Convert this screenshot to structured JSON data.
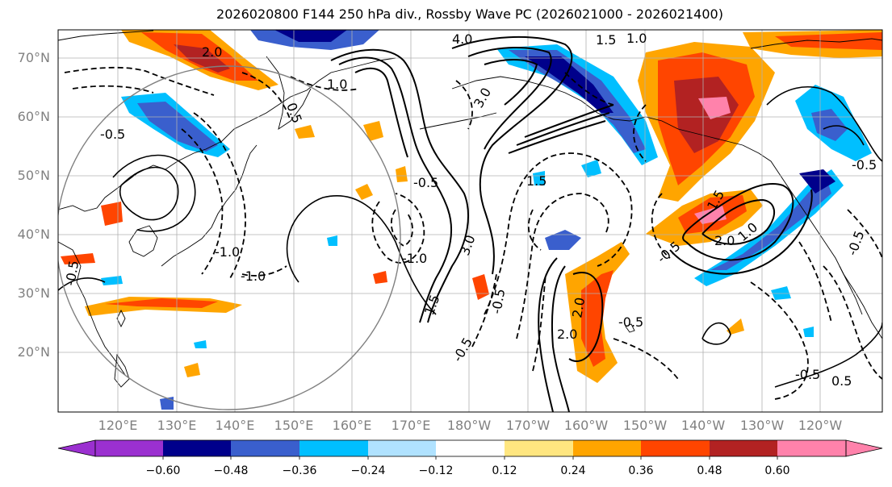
{
  "title": "2026020800 F144 250 hPa div., Rossby Wave PC (2026021000 - 2026021400)",
  "lat_labels": [
    "70°N",
    "60°N",
    "50°N",
    "40°N",
    "30°N",
    "20°N"
  ],
  "lon_labels": [
    "120°E",
    "130°E",
    "140°E",
    "150°E",
    "160°E",
    "170°E",
    "180°W",
    "170°W",
    "160°W",
    "150°W",
    "140°W",
    "130°W",
    "120°W"
  ],
  "colorbar": {
    "colors": [
      "#9b30d0",
      "#00008b",
      "#3a5fcd",
      "#00bfff",
      "#b0e2ff",
      "#ffffff",
      "#ffe680",
      "#ffa500",
      "#ff4500",
      "#b22222",
      "#ff82ab"
    ],
    "tick_labels": [
      "−0.60",
      "−0.48",
      "−0.36",
      "−0.24",
      "−0.12",
      "0.12",
      "0.24",
      "0.36",
      "0.48",
      "0.60"
    ],
    "extend": "both"
  },
  "contour_labels": [
    "4.0",
    "1.5",
    "1.0",
    "2.0",
    "0.5",
    "3.0",
    "-0.5",
    "1.0",
    "-0.5",
    "-1.0",
    "-1.0",
    "3.0",
    "1.5",
    "-0.5",
    "-0.5",
    "1.5",
    "-0.5",
    "1.5",
    "-1.0",
    "2.0",
    "1.0",
    "2.0",
    "-0.5",
    "-0.5",
    "-0.5",
    "2.0",
    "-0.5",
    "0.5",
    "-0.5"
  ],
  "map_style": {
    "coastline_color": "#000000",
    "grid_color": "#b0b0b0",
    "ocean_color": "#ffffff"
  }
}
